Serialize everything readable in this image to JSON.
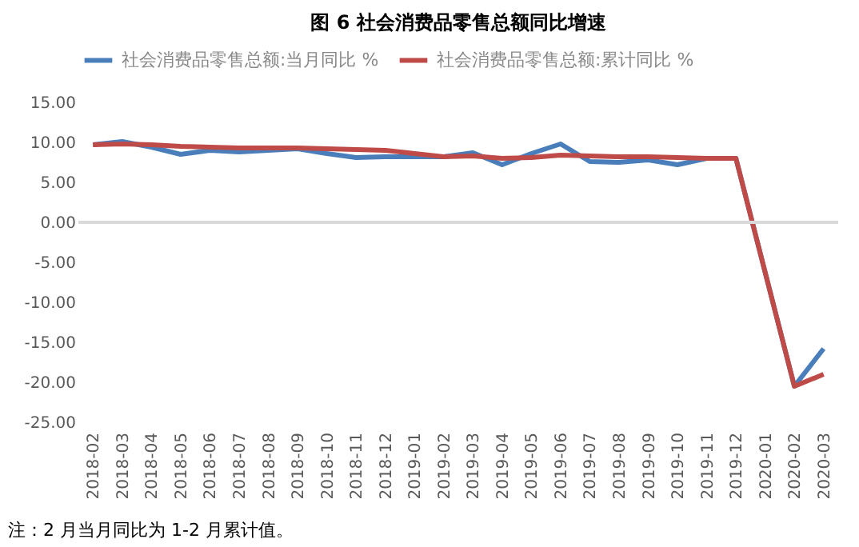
{
  "chart_data": {
    "type": "line",
    "title": "图 6   社会消费品零售总额同比增速",
    "categories": [
      "2018-02",
      "2018-03",
      "2018-04",
      "2018-05",
      "2018-06",
      "2018-07",
      "2018-08",
      "2018-09",
      "2018-10",
      "2018-11",
      "2018-12",
      "2019-01",
      "2019-02",
      "2019-03",
      "2019-04",
      "2019-05",
      "2019-06",
      "2019-07",
      "2019-08",
      "2019-09",
      "2019-10",
      "2019-11",
      "2019-12",
      "2020-01",
      "2020-02",
      "2020-03"
    ],
    "series": [
      {
        "name": "社会消费品零售总额:当月同比 %",
        "color": "#4a7ebb",
        "values": [
          9.7,
          10.1,
          9.4,
          8.5,
          9.0,
          8.8,
          9.0,
          9.2,
          8.6,
          8.1,
          8.2,
          8.2,
          8.2,
          8.7,
          7.2,
          8.6,
          9.8,
          7.6,
          7.5,
          7.8,
          7.2,
          8.0,
          8.0,
          null,
          -20.5,
          -15.8
        ]
      },
      {
        "name": "社会消费品零售总额:累计同比 %",
        "color": "#be4b48",
        "values": [
          9.7,
          9.8,
          9.7,
          9.5,
          9.4,
          9.3,
          9.3,
          9.3,
          9.2,
          9.1,
          9.0,
          8.6,
          8.2,
          8.3,
          8.0,
          8.1,
          8.4,
          8.3,
          8.2,
          8.2,
          8.1,
          8.0,
          8.0,
          null,
          -20.5,
          -19.0
        ]
      }
    ],
    "ylim": [
      -25,
      15
    ],
    "yticks": [
      {
        "value": -25,
        "label": "-25.00"
      },
      {
        "value": -20,
        "label": "-20.00"
      },
      {
        "value": -15,
        "label": "-15.00"
      },
      {
        "value": -10,
        "label": "-10.00"
      },
      {
        "value": -5,
        "label": "-5.00"
      },
      {
        "value": 0,
        "label": "0.00"
      },
      {
        "value": 5,
        "label": "5.00"
      },
      {
        "value": 10,
        "label": "10.00"
      },
      {
        "value": 15,
        "label": "15.00"
      }
    ],
    "ref_lines": [
      {
        "axis": "y",
        "value": 0,
        "color": "#d9d9d9"
      }
    ],
    "grid": false,
    "legend": "top",
    "line_style": "solid",
    "annotations": [
      "注：2 月当月同比为 1-2 月累计值。"
    ]
  }
}
